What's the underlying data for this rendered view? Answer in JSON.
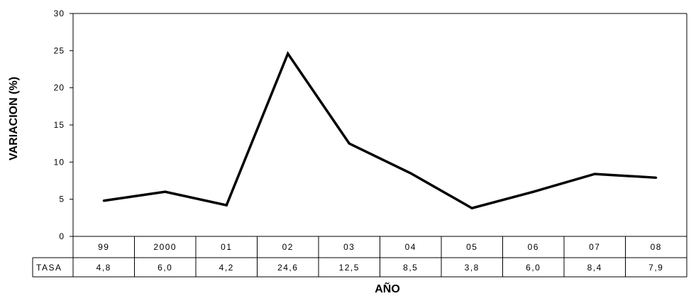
{
  "chart_data": {
    "type": "line",
    "categories": [
      "99",
      "2000",
      "01",
      "02",
      "03",
      "04",
      "05",
      "06",
      "07",
      "08"
    ],
    "series": [
      {
        "name": "TASA",
        "values": [
          4.8,
          6.0,
          4.2,
          24.6,
          12.5,
          8.5,
          3.8,
          6.0,
          8.4,
          7.9
        ]
      }
    ],
    "table": {
      "row_label": "TASA",
      "values": [
        "4,8",
        "6,0",
        "4,2",
        "24,6",
        "12,5",
        "8,5",
        "3,8",
        "6,0",
        "8,4",
        "7,9"
      ]
    },
    "title": "",
    "xlabel": "AÑO",
    "ylabel": "VARIACION (%)",
    "ylim": [
      0,
      30
    ],
    "yticks": [
      0,
      5,
      10,
      15,
      20,
      25,
      30
    ],
    "ytick_labels": [
      "0",
      "5",
      "10",
      "15",
      "20",
      "25",
      "30"
    ],
    "grid": false,
    "line_color": "#000000"
  }
}
